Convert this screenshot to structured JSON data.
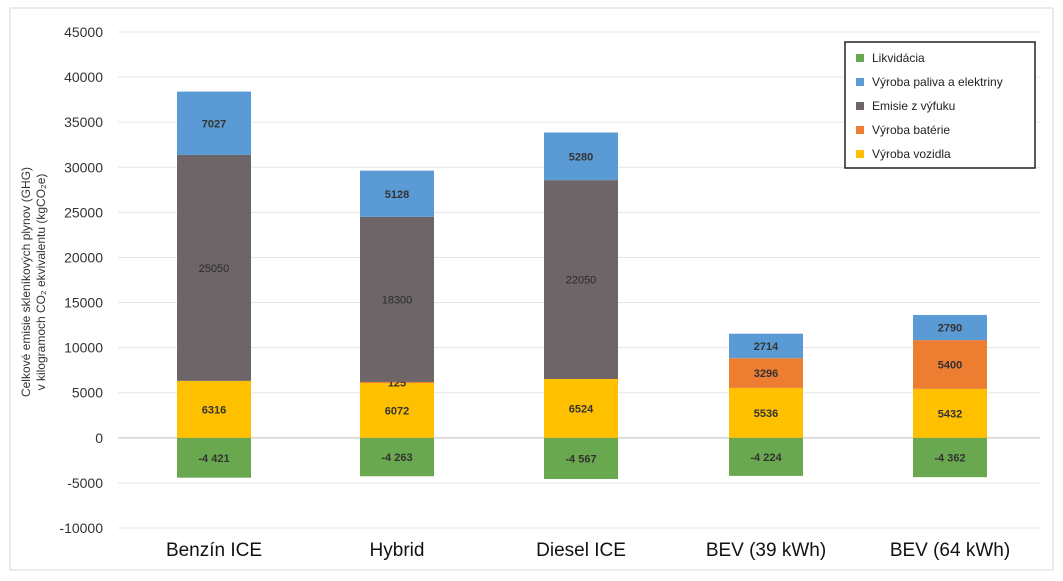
{
  "chart_data": {
    "type": "bar",
    "stacked": true,
    "categories": [
      "Benzín ICE",
      "Hybrid",
      "Diesel ICE",
      "BEV (39 kWh)",
      "BEV (64 kWh)"
    ],
    "series": [
      {
        "name": "Likvidácia",
        "color": "#6aa84f",
        "values": [
          -4421,
          -4263,
          -4567,
          -4224,
          -4362
        ],
        "labels": [
          "-4 421",
          "-4 263",
          "-4 567",
          "-4 224",
          "-4 362"
        ]
      },
      {
        "name": "Výroba vozidla",
        "color": "#ffc000",
        "values": [
          6316,
          6072,
          6524,
          5536,
          5432
        ],
        "labels": [
          "6316",
          "6072",
          "6524",
          "5536",
          "5432"
        ]
      },
      {
        "name": "Výroba batérie",
        "color": "#ed7d31",
        "values": [
          0,
          125,
          0,
          3296,
          5400
        ],
        "labels": [
          "",
          "125",
          "",
          "3296",
          "5400"
        ]
      },
      {
        "name": "Emisie z výfuku",
        "color": "#6d6568",
        "values": [
          25050,
          18300,
          22050,
          0,
          0
        ],
        "labels": [
          "25050",
          "18300",
          "22050",
          "",
          ""
        ]
      },
      {
        "name": "Výroba paliva a elektriny",
        "color": "#5b9bd5",
        "values": [
          7027,
          5128,
          5280,
          2714,
          2790
        ],
        "labels": [
          "7027",
          "5128",
          "5280",
          "2714",
          "2790"
        ]
      }
    ],
    "legend_order": [
      "Likvidácia",
      "Výroba paliva a elektriny",
      "Emisie z výfuku",
      "Výroba batérie",
      "Výroba vozidla"
    ],
    "legend_position": "top-right",
    "ylim": [
      -10000,
      45000
    ],
    "yticks": [
      -10000,
      -5000,
      0,
      5000,
      10000,
      15000,
      20000,
      25000,
      30000,
      35000,
      40000,
      45000
    ],
    "ylabel_line1": "Celkové emisie skleníkových plynov (GHG)",
    "ylabel_line2": "v kilogramoch CO₂ ekvivalentu (kgCO₂e)",
    "grid": true
  }
}
